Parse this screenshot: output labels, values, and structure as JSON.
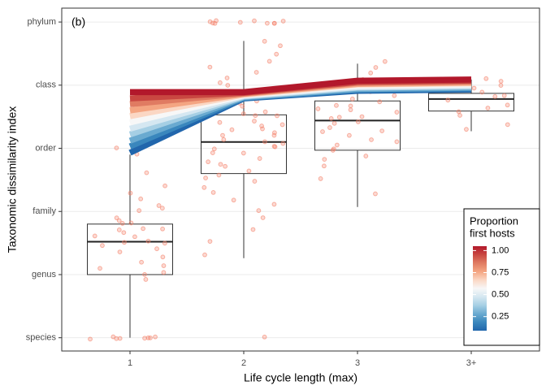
{
  "chart_data": {
    "type": "box",
    "annotation": "(b)",
    "x_label": "Life cycle length (max)",
    "y_label": "Taxonomic dissimilarity index",
    "categories": [
      "1",
      "2",
      "3",
      "3+"
    ],
    "ylim": [
      0.79,
      6.22
    ],
    "yticks": [
      {
        "value": 1,
        "label": "species"
      },
      {
        "value": 2,
        "label": "genus"
      },
      {
        "value": 3,
        "label": "family"
      },
      {
        "value": 4,
        "label": "order"
      },
      {
        "value": 5,
        "label": "class"
      },
      {
        "value": 6,
        "label": "phylum"
      }
    ],
    "grid": true,
    "boxes": [
      {
        "whislo": 1.0,
        "q1": 2.0,
        "med": 2.52,
        "q3": 2.8,
        "whishi": 3.9
      },
      {
        "whislo": 2.26,
        "q1": 3.6,
        "med": 4.1,
        "q3": 4.53,
        "whishi": 5.7
      },
      {
        "whislo": 3.07,
        "q1": 3.97,
        "med": 4.44,
        "q3": 4.75,
        "whishi": 5.34
      },
      {
        "whislo": 4.27,
        "q1": 4.59,
        "med": 4.78,
        "q3": 4.87,
        "whishi": 5.09
      }
    ],
    "point_color": "#f4826a",
    "points": [
      [
        1,
        1,
        1,
        1,
        1,
        1,
        1,
        1,
        1.9,
        2.0,
        2.05,
        2.1,
        2.15,
        2.2,
        2.3,
        2.35,
        2.4,
        2.45,
        2.5,
        2.5,
        2.55,
        2.6,
        2.6,
        2.65,
        2.7,
        2.7,
        2.75,
        2.8,
        2.8,
        2.85,
        2.9,
        3.0,
        3.05,
        3.1,
        3.2,
        3.3,
        3.4,
        3.6,
        3.9,
        4.0
      ],
      [
        6,
        6,
        6,
        6,
        6,
        6,
        6,
        6,
        6,
        6,
        1.0,
        2.3,
        2.5,
        2.7,
        2.9,
        3.0,
        3.1,
        3.2,
        3.3,
        3.4,
        3.5,
        3.55,
        3.6,
        3.65,
        3.7,
        3.75,
        3.8,
        3.85,
        3.9,
        3.95,
        4.0,
        4.0,
        4.05,
        4.1,
        4.1,
        4.15,
        4.2,
        4.2,
        4.25,
        4.3,
        4.3,
        4.35,
        4.4,
        4.4,
        4.45,
        4.5,
        4.5,
        4.55,
        4.6,
        4.65,
        4.7,
        4.75,
        4.8,
        4.85,
        4.9,
        5.0,
        5.05,
        5.1,
        5.2,
        5.3,
        5.4,
        5.5,
        5.6,
        5.7
      ],
      [
        3.3,
        3.5,
        3.7,
        3.8,
        3.9,
        3.95,
        4.0,
        4.05,
        4.1,
        4.15,
        4.2,
        4.25,
        4.3,
        4.35,
        4.4,
        4.4,
        4.45,
        4.5,
        4.5,
        4.55,
        4.6,
        4.6,
        4.65,
        4.7,
        4.75,
        4.8,
        4.85,
        4.9,
        5.0,
        5.05,
        5.1,
        5.2,
        5.3,
        5.4
      ],
      [
        4.3,
        4.4,
        4.5,
        4.6,
        4.65,
        4.7,
        4.75,
        4.8,
        4.85,
        4.9,
        4.95,
        5.0,
        5.05,
        5.1
      ]
    ],
    "lines": [
      {
        "color": "#2166ac",
        "values": [
          3.93,
          4.79,
          4.91,
          4.93
        ]
      },
      {
        "color": "#3a87bd",
        "values": [
          4.03,
          4.8,
          4.93,
          4.95
        ]
      },
      {
        "color": "#6aaad0",
        "values": [
          4.12,
          4.81,
          4.94,
          4.96
        ]
      },
      {
        "color": "#a6cfe4",
        "values": [
          4.22,
          4.82,
          4.96,
          4.98
        ]
      },
      {
        "color": "#d5e7f1",
        "values": [
          4.31,
          4.83,
          4.97,
          4.99
        ]
      },
      {
        "color": "#f7f7f7",
        "values": [
          4.41,
          4.84,
          4.99,
          5.01
        ]
      },
      {
        "color": "#fbd7c4",
        "values": [
          4.51,
          4.85,
          5.01,
          5.03
        ]
      },
      {
        "color": "#f4a582",
        "values": [
          4.6,
          4.86,
          5.02,
          5.04
        ]
      },
      {
        "color": "#e07b62",
        "values": [
          4.7,
          4.87,
          5.04,
          5.06
        ]
      },
      {
        "color": "#c94741",
        "values": [
          4.79,
          4.88,
          5.05,
          5.07
        ]
      },
      {
        "color": "#b2182b",
        "values": [
          4.89,
          4.89,
          5.07,
          5.09
        ]
      }
    ],
    "legend": {
      "title": [
        "Proportion",
        "first hosts"
      ],
      "position": "bottom-right",
      "clim": [
        0.09,
        1.05
      ],
      "ticks": [
        {
          "value": 0.25,
          "label": "0.25"
        },
        {
          "value": 0.5,
          "label": "0.50"
        },
        {
          "value": 0.75,
          "label": "0.75"
        },
        {
          "value": 1,
          "label": "1.00"
        }
      ]
    }
  }
}
